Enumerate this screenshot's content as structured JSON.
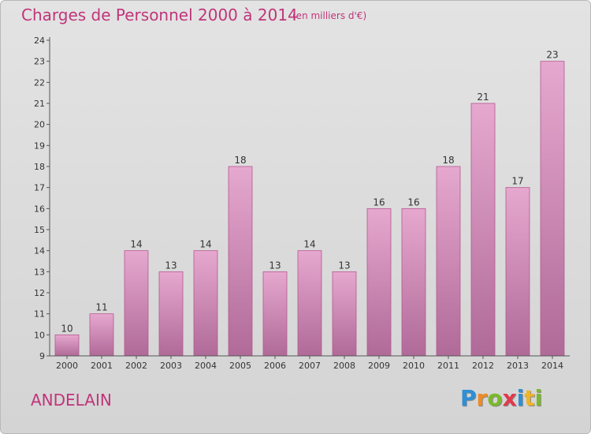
{
  "title": "Charges de Personnel 2000 à 2014",
  "subtitle": "(en milliers d'€)",
  "place_name": "ANDELAIN",
  "logo": {
    "text": "Proxiti",
    "letters": [
      {
        "ch": "P",
        "color": "#2e8fd6"
      },
      {
        "ch": "r",
        "color": "#f08a24"
      },
      {
        "ch": "o",
        "color": "#7ab929"
      },
      {
        "ch": "x",
        "color": "#e03a4b"
      },
      {
        "ch": "i",
        "color": "#2e8fd6"
      },
      {
        "ch": "t",
        "color": "#f0b324"
      },
      {
        "ch": "i",
        "color": "#7ab929"
      }
    ]
  },
  "colors": {
    "accent": "#c0357a",
    "bar_top": "#e6a8cf",
    "bar_bottom": "#b06a98",
    "bar_edge": "#b5588f"
  },
  "chart_data": {
    "type": "bar",
    "title": "Charges de Personnel 2000 à 2014",
    "subtitle": "(en milliers d'€)",
    "categories": [
      "2000",
      "2001",
      "2002",
      "2003",
      "2004",
      "2005",
      "2006",
      "2007",
      "2008",
      "2009",
      "2010",
      "2011",
      "2012",
      "2013",
      "2014"
    ],
    "values": [
      10,
      11,
      14,
      13,
      14,
      18,
      13,
      14,
      13,
      16,
      16,
      18,
      21,
      17,
      23
    ],
    "ylim": [
      9,
      24
    ],
    "yticks": [
      9,
      10,
      11,
      12,
      13,
      14,
      15,
      16,
      17,
      18,
      19,
      20,
      21,
      22,
      23,
      24
    ],
    "grid": false,
    "data_labels": true
  }
}
